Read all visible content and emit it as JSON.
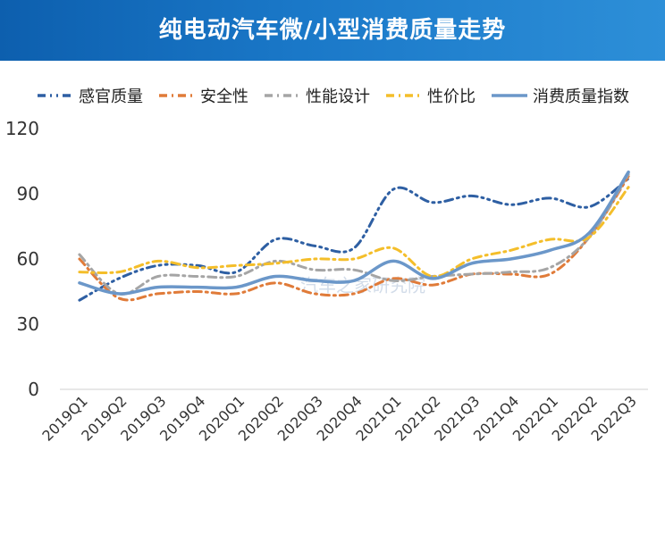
{
  "header": {
    "title": "纯电动汽车微/小型消费质量走势"
  },
  "chart_data": {
    "type": "line",
    "title": "纯电动汽车微/小型消费质量走势",
    "xlabel": "",
    "ylabel": "",
    "ylim": [
      0,
      120
    ],
    "yticks": [
      "0",
      "30",
      "60",
      "90",
      "120"
    ],
    "grid": false,
    "legend_position": "top",
    "categories": [
      "2019Q1",
      "2019Q2",
      "2019Q3",
      "2019Q4",
      "2020Q1",
      "2020Q2",
      "2020Q3",
      "2020Q4",
      "2021Q1",
      "2021Q2",
      "2021Q3",
      "2021Q4",
      "2022Q1",
      "2022Q2",
      "2022Q3"
    ],
    "series": [
      {
        "name": "感官质量",
        "color": "#2e5fa3",
        "dash": "dashdotdot",
        "values": [
          41,
          51,
          57,
          57,
          54,
          69,
          66,
          65,
          92,
          86,
          89,
          85,
          88,
          84,
          97
        ]
      },
      {
        "name": "安全性",
        "color": "#e07b39",
        "dash": "dashdot",
        "values": [
          60,
          42,
          44,
          45,
          44,
          49,
          44,
          44,
          51,
          48,
          53,
          53,
          53,
          70,
          98
        ]
      },
      {
        "name": "性能设计",
        "color": "#a5a5a5",
        "dash": "dashdot",
        "values": [
          62,
          44,
          52,
          52,
          52,
          59,
          55,
          55,
          50,
          52,
          53,
          54,
          56,
          70,
          99
        ]
      },
      {
        "name": "性价比",
        "color": "#f4be2a",
        "dash": "dashdot",
        "values": [
          54,
          54,
          59,
          56,
          57,
          58,
          60,
          60,
          65,
          52,
          60,
          64,
          69,
          70,
          93
        ]
      },
      {
        "name": "消费质量指数",
        "color": "#6b97c9",
        "dash": "solid",
        "values": [
          49,
          44,
          47,
          47,
          47,
          52,
          50,
          50,
          59,
          51,
          58,
          60,
          64,
          72,
          100
        ]
      }
    ]
  },
  "watermark": {
    "text": "汽车之家研究院"
  }
}
